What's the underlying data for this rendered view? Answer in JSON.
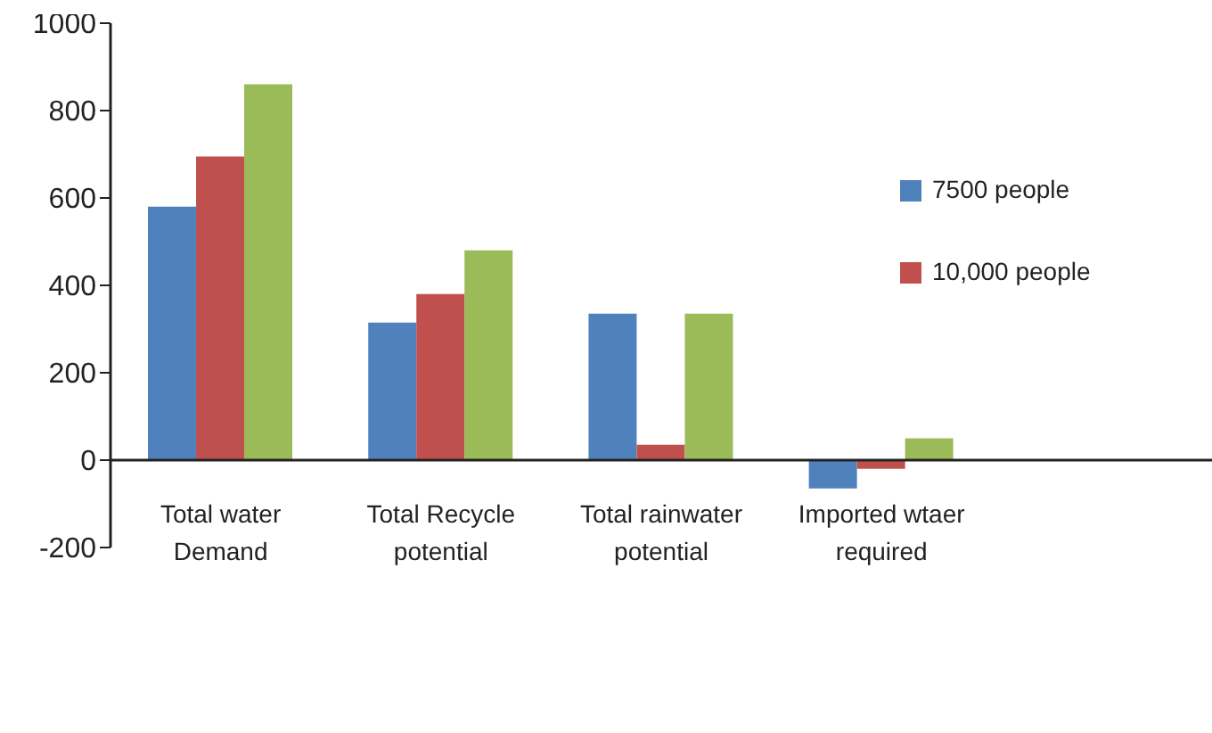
{
  "chart_data": {
    "type": "bar",
    "categories": [
      "Total water Demand",
      "Total Recycle potential",
      "Total rainwater potential",
      "Imported wtaer required",
      null
    ],
    "series": [
      {
        "name": "7500 people",
        "color": "#4f81bd",
        "values": [
          580,
          315,
          335,
          -65,
          null
        ]
      },
      {
        "name": "10,000 people",
        "color": "#c0504d",
        "values": [
          695,
          380,
          35,
          -20,
          null
        ]
      },
      {
        "color": "#9bbb59",
        "values": [
          860,
          480,
          335,
          50,
          null
        ]
      }
    ],
    "ylim": [
      -200,
      1000
    ],
    "yticks": [
      -200,
      0,
      200,
      400,
      600,
      800,
      1000
    ],
    "legend": "right"
  }
}
